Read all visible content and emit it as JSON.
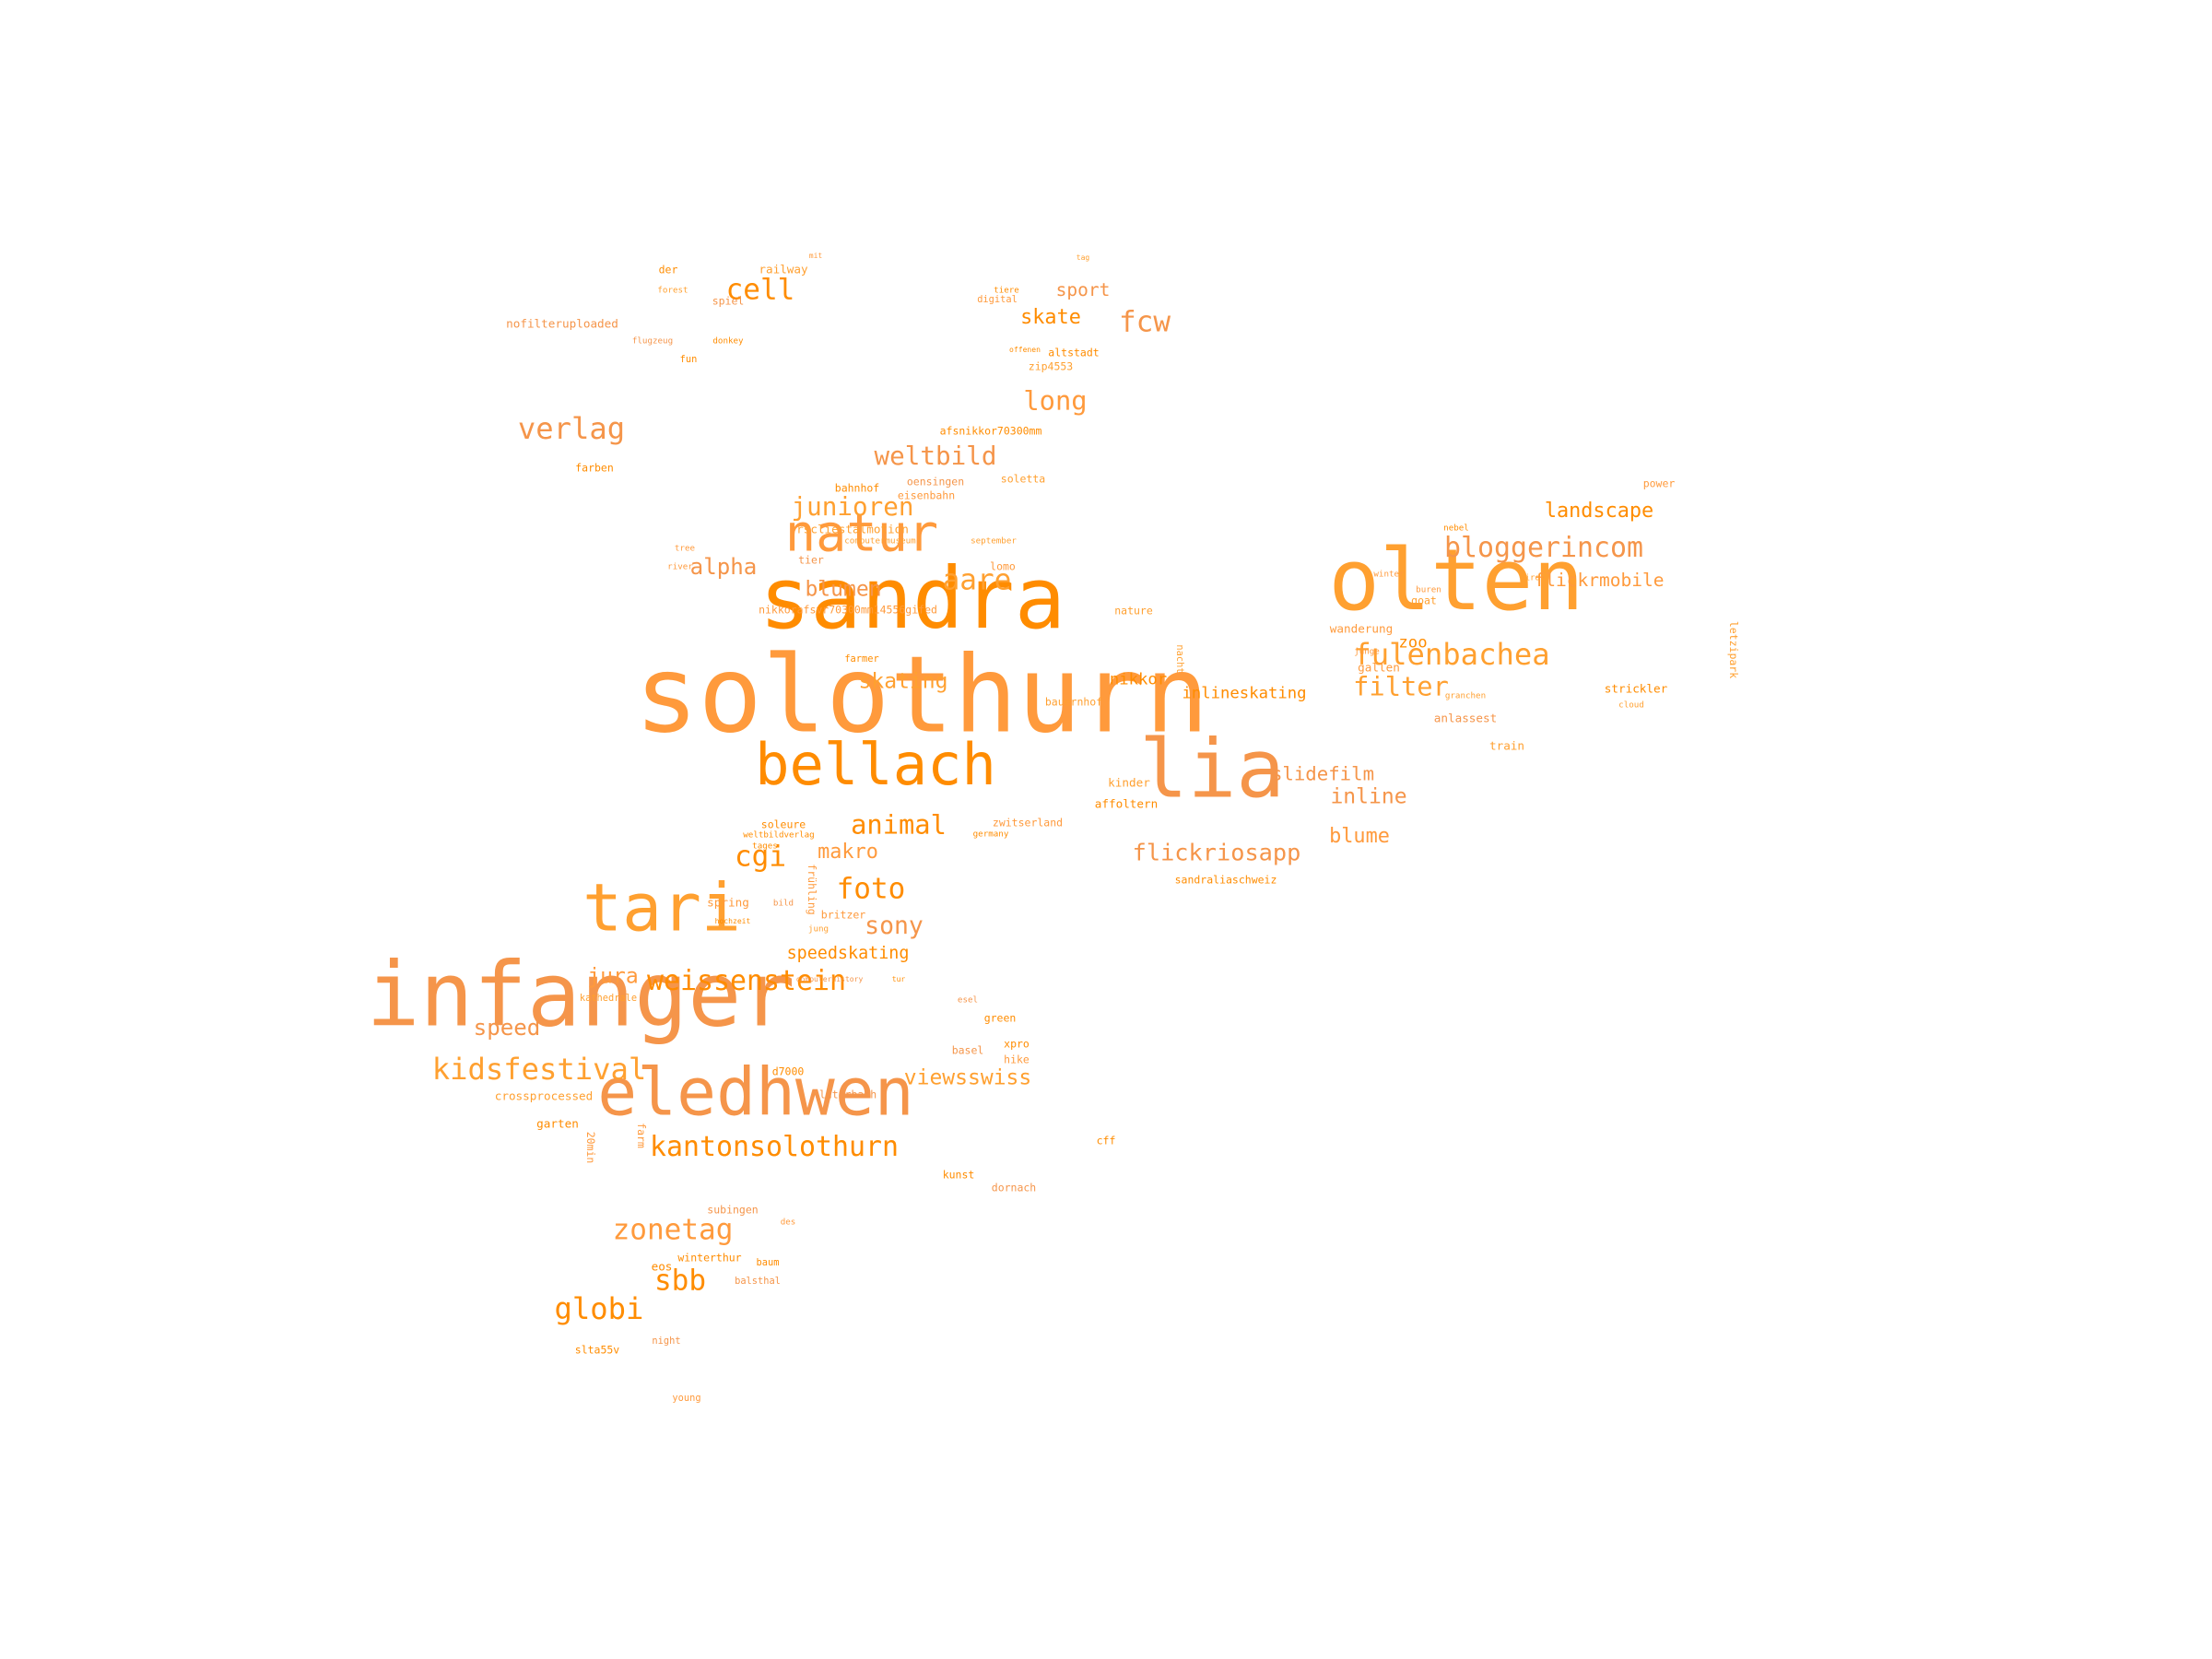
{
  "word_cloud": {
    "colors": [
      "#ff8c00",
      "#f5954a",
      "#ffa030",
      "#ff9a3c"
    ],
    "words": [
      {
        "text": "solothurn",
        "weight": 100
      },
      {
        "text": "infanger",
        "weight": 84
      },
      {
        "text": "sandra",
        "weight": 80
      },
      {
        "text": "olten",
        "weight": 80
      },
      {
        "text": "lia",
        "weight": 76
      },
      {
        "text": "eledhwen",
        "weight": 62
      },
      {
        "text": "tari",
        "weight": 62
      },
      {
        "text": "bellach",
        "weight": 54
      },
      {
        "text": "natur",
        "weight": 48
      },
      {
        "text": "fulenbachea",
        "weight": 28
      },
      {
        "text": "kidsfestival",
        "weight": 28
      },
      {
        "text": "kantonsolothurn",
        "weight": 26
      },
      {
        "text": "weissenstein",
        "weight": 26
      },
      {
        "text": "bloggerincom",
        "weight": 26
      },
      {
        "text": "aare",
        "weight": 27
      },
      {
        "text": "verlag",
        "weight": 28
      },
      {
        "text": "cell",
        "weight": 27
      },
      {
        "text": "globi",
        "weight": 28
      },
      {
        "text": "zonetag",
        "weight": 27
      },
      {
        "text": "sbb",
        "weight": 27
      },
      {
        "text": "foto",
        "weight": 27
      },
      {
        "text": "weltbild",
        "weight": 24
      },
      {
        "text": "junioren",
        "weight": 24
      },
      {
        "text": "long",
        "weight": 25
      },
      {
        "text": "filter",
        "weight": 25
      },
      {
        "text": "flickriosapp",
        "weight": 22
      },
      {
        "text": "animal",
        "weight": 25
      },
      {
        "text": "cgi",
        "weight": 27
      },
      {
        "text": "fcw",
        "weight": 27
      },
      {
        "text": "sony",
        "weight": 23
      },
      {
        "text": "alpha",
        "weight": 21
      },
      {
        "text": "blumen",
        "weight": 20
      },
      {
        "text": "viewsswiss",
        "weight": 20
      },
      {
        "text": "skating",
        "weight": 20
      },
      {
        "text": "speed",
        "weight": 21
      },
      {
        "text": "jura",
        "weight": 20
      },
      {
        "text": "makro",
        "weight": 19
      },
      {
        "text": "landscape",
        "weight": 19
      },
      {
        "text": "slidefilm",
        "weight": 18
      },
      {
        "text": "inline",
        "weight": 20
      },
      {
        "text": "blume",
        "weight": 19
      },
      {
        "text": "skate",
        "weight": 19
      },
      {
        "text": "sport",
        "weight": 17
      },
      {
        "text": "flickrmobile",
        "weight": 17
      },
      {
        "text": "speedskating",
        "weight": 16
      },
      {
        "text": "inlineskating",
        "weight": 15
      },
      {
        "text": "nikkor",
        "weight": 15
      },
      {
        "text": "zoo",
        "weight": 15
      },
      {
        "text": "crossprocessed",
        "weight": 11
      },
      {
        "text": "nofilteruploaded",
        "weight": 11
      },
      {
        "text": "rscliestalmotion",
        "weight": 11
      },
      {
        "text": "nikkorafsvr70300mm14556gifed",
        "weight": 10
      },
      {
        "text": "afsnikkor70300mm",
        "weight": 10
      },
      {
        "text": "strickler",
        "weight": 11
      },
      {
        "text": "anlassest",
        "weight": 11
      },
      {
        "text": "train",
        "weight": 11
      },
      {
        "text": "wanderung",
        "weight": 11
      },
      {
        "text": "gallen",
        "weight": 11
      },
      {
        "text": "goat",
        "weight": 10
      },
      {
        "text": "letzipark",
        "weight": 10
      },
      {
        "text": "power",
        "weight": 10
      },
      {
        "text": "railway",
        "weight": 11
      },
      {
        "text": "spiel",
        "weight": 10
      },
      {
        "text": "der",
        "weight": 10
      },
      {
        "text": "altstadt",
        "weight": 10
      },
      {
        "text": "zip4553",
        "weight": 10
      },
      {
        "text": "oensingen",
        "weight": 10
      },
      {
        "text": "bahnhof",
        "weight": 10
      },
      {
        "text": "eisenbahn",
        "weight": 10
      },
      {
        "text": "soletta",
        "weight": 10
      },
      {
        "text": "farben",
        "weight": 10
      },
      {
        "text": "lomo",
        "weight": 10
      },
      {
        "text": "nature",
        "weight": 10
      },
      {
        "text": "tier",
        "weight": 10
      },
      {
        "text": "farmer",
        "weight": 9
      },
      {
        "text": "bauernhof",
        "weight": 10
      },
      {
        "text": "kinder",
        "weight": 11
      },
      {
        "text": "affoltern",
        "weight": 11
      },
      {
        "text": "zwitserland",
        "weight": 10
      },
      {
        "text": "soleure",
        "weight": 10
      },
      {
        "text": "sandraliaschweiz",
        "weight": 10
      },
      {
        "text": "spring",
        "weight": 11
      },
      {
        "text": "britzer",
        "weight": 10
      },
      {
        "text": "frühling",
        "weight": 10
      },
      {
        "text": "kathedrale",
        "weight": 9
      },
      {
        "text": "green",
        "weight": 10
      },
      {
        "text": "basel",
        "weight": 10
      },
      {
        "text": "hike",
        "weight": 10
      },
      {
        "text": "xpro",
        "weight": 10
      },
      {
        "text": "d7000",
        "weight": 10
      },
      {
        "text": "luterbach",
        "weight": 10
      },
      {
        "text": "cff",
        "weight": 10
      },
      {
        "text": "dornach",
        "weight": 10
      },
      {
        "text": "kunst",
        "weight": 10
      },
      {
        "text": "garten",
        "weight": 11
      },
      {
        "text": "farm",
        "weight": 10
      },
      {
        "text": "20min",
        "weight": 10
      },
      {
        "text": "subingen",
        "weight": 10
      },
      {
        "text": "winterthur",
        "weight": 10
      },
      {
        "text": "eos",
        "weight": 11
      },
      {
        "text": "baum",
        "weight": 9
      },
      {
        "text": "balsthal",
        "weight": 9
      },
      {
        "text": "night",
        "weight": 9
      },
      {
        "text": "slta55v",
        "weight": 10
      },
      {
        "text": "young",
        "weight": 9
      },
      {
        "text": "tiere",
        "weight": 8
      },
      {
        "text": "digital",
        "weight": 9
      },
      {
        "text": "fun",
        "weight": 9
      },
      {
        "text": "forest",
        "weight": 8
      },
      {
        "text": "flugzeug",
        "weight": 8
      },
      {
        "text": "donkey",
        "weight": 8
      },
      {
        "text": "tree",
        "weight": 8
      },
      {
        "text": "river",
        "weight": 8
      },
      {
        "text": "nebel",
        "weight": 8
      },
      {
        "text": "bird",
        "weight": 8
      },
      {
        "text": "cloud",
        "weight": 8
      },
      {
        "text": "junge",
        "weight": 8
      },
      {
        "text": "winter",
        "weight": 8
      },
      {
        "text": "granchen",
        "weight": 8
      },
      {
        "text": "september",
        "weight": 8
      },
      {
        "text": "computermuseum",
        "weight": 8
      },
      {
        "text": "tages",
        "weight": 8
      },
      {
        "text": "weltbildverlag",
        "weight": 8
      },
      {
        "text": "germany",
        "weight": 8
      },
      {
        "text": "hochzeit",
        "weight": 7
      },
      {
        "text": "bild",
        "weight": 8
      },
      {
        "text": "jung",
        "weight": 8
      },
      {
        "text": "tur",
        "weight": 7
      },
      {
        "text": "computerhistory",
        "weight": 7
      },
      {
        "text": "esel",
        "weight": 8
      },
      {
        "text": "des",
        "weight": 8
      },
      {
        "text": "nacht",
        "weight": 9
      },
      {
        "text": "buren",
        "weight": 8
      },
      {
        "text": "tag",
        "weight": 7
      },
      {
        "text": "mit",
        "weight": 7
      },
      {
        "text": "offenen",
        "weight": 7
      }
    ]
  }
}
